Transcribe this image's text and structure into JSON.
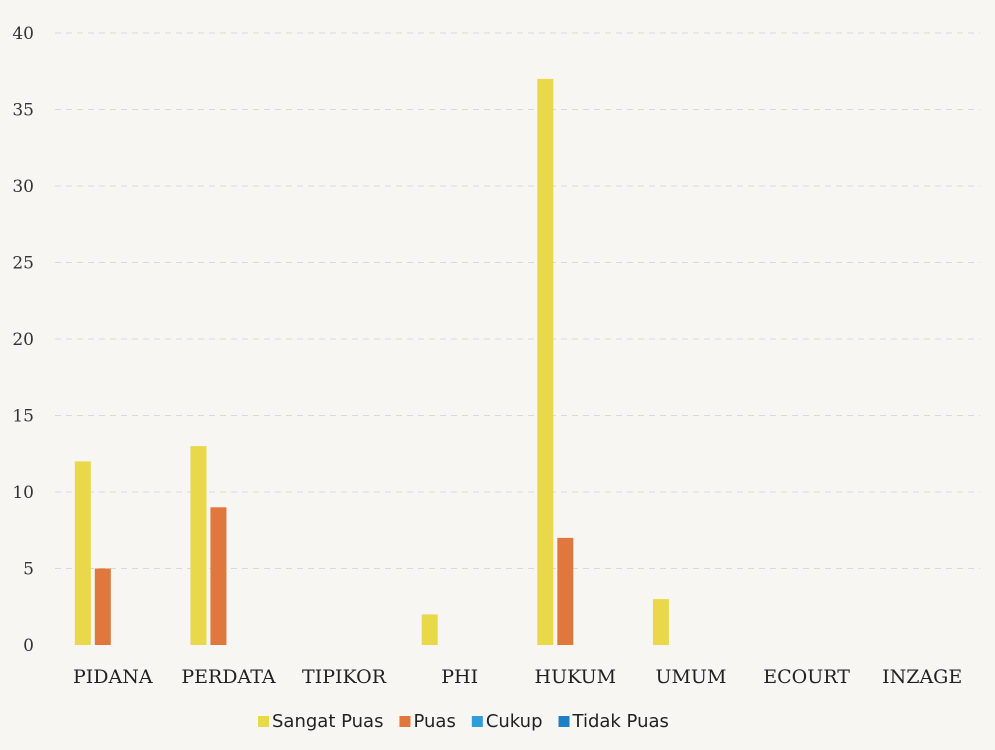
{
  "chart_data": {
    "type": "bar",
    "title": "",
    "xlabel": "",
    "ylabel": "",
    "ylim": [
      0,
      40
    ],
    "yticks": [
      0,
      5,
      10,
      15,
      20,
      25,
      30,
      35,
      40
    ],
    "grid": true,
    "legend_position": "bottom",
    "categories": [
      "PIDANA",
      "PERDATA",
      "TIPIKOR",
      "PHI",
      "HUKUM",
      "UMUM",
      "ECOURT",
      "INZAGE"
    ],
    "series": [
      {
        "name": "Sangat Puas",
        "color": "#e8d84a",
        "values": [
          12,
          13,
          0,
          2,
          37,
          3,
          0,
          0
        ]
      },
      {
        "name": "Puas",
        "color": "#e0783e",
        "values": [
          5,
          9,
          0,
          0,
          7,
          0,
          0,
          0
        ]
      },
      {
        "name": "Cukup",
        "color": "#2f9ed8",
        "values": [
          0,
          0,
          0,
          0,
          0,
          0,
          0,
          0
        ]
      },
      {
        "name": "Tidak Puas",
        "color": "#1f7fc4",
        "values": [
          0,
          0,
          0,
          0,
          0,
          0,
          0,
          0
        ]
      }
    ]
  }
}
